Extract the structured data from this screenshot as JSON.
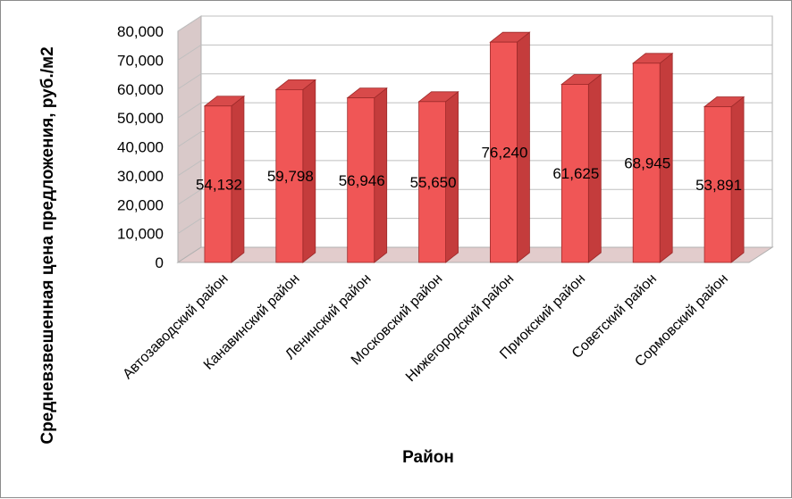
{
  "chart_data": {
    "type": "bar",
    "style": "3d-column",
    "categories": [
      "Автозаводский район",
      "Канавинский район",
      "Ленинский район",
      "Московский район",
      "Нижегородский район",
      "Приокский район",
      "Советский район",
      "Сормовский район"
    ],
    "values": [
      54132,
      59798,
      56946,
      55650,
      76240,
      61625,
      68945,
      53891
    ],
    "data_labels": [
      "54,132",
      "59,798",
      "56,946",
      "55,650",
      "76,240",
      "61,625",
      "68,945",
      "53,891"
    ],
    "ylabel": "Средневзвешенная цена предложения, руб./м2",
    "xlabel": "Район",
    "ylim": [
      0,
      80000
    ],
    "yticks": [
      0,
      10000,
      20000,
      30000,
      40000,
      50000,
      60000,
      70000,
      80000
    ],
    "ytick_labels": [
      "0",
      "10,000",
      "20,000",
      "30,000",
      "40,000",
      "50,000",
      "60,000",
      "70,000",
      "80,000"
    ],
    "grid": true,
    "legend": "none",
    "colors": {
      "bar_front": "#f05656",
      "bar_side": "#c43c3c",
      "bar_top": "#d84a4a",
      "bar_edge": "#9e2a2a",
      "wall": "#ffffff",
      "floor": "#e2cccc",
      "grid": "#bfbfbf"
    }
  }
}
